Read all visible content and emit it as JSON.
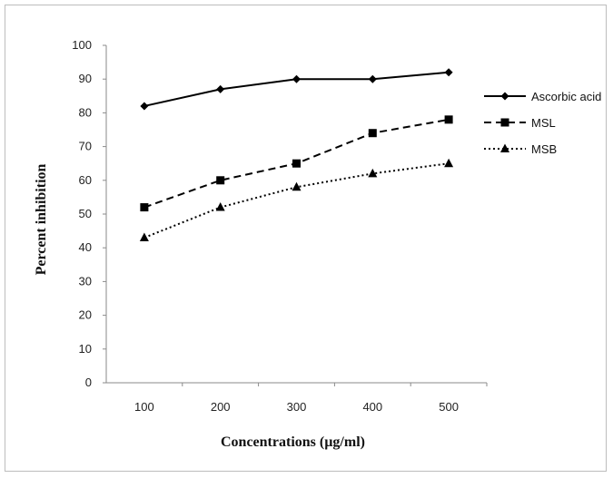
{
  "chart_data": {
    "type": "line",
    "title": "",
    "xlabel": "Concentrations (µg/ml)",
    "ylabel": "Percent inhibition",
    "categories": [
      "100",
      "200",
      "300",
      "400",
      "500"
    ],
    "x": [
      100,
      200,
      300,
      400,
      500
    ],
    "ylim": [
      0,
      100
    ],
    "y_ticks": [
      "0",
      "10",
      "20",
      "30",
      "40",
      "50",
      "60",
      "70",
      "80",
      "90",
      "100"
    ],
    "grid": false,
    "legend_position": "right",
    "series": [
      {
        "name": "Ascorbic acid",
        "values": [
          82,
          87,
          90,
          90,
          92
        ],
        "line_style": "solid",
        "marker": "diamond",
        "color": "#000000"
      },
      {
        "name": "MSL",
        "values": [
          52,
          60,
          65,
          74,
          78
        ],
        "line_style": "dashed",
        "marker": "square",
        "color": "#000000"
      },
      {
        "name": "MSB",
        "values": [
          43,
          52,
          58,
          62,
          65
        ],
        "line_style": "dotted",
        "marker": "triangle",
        "color": "#000000"
      }
    ]
  }
}
